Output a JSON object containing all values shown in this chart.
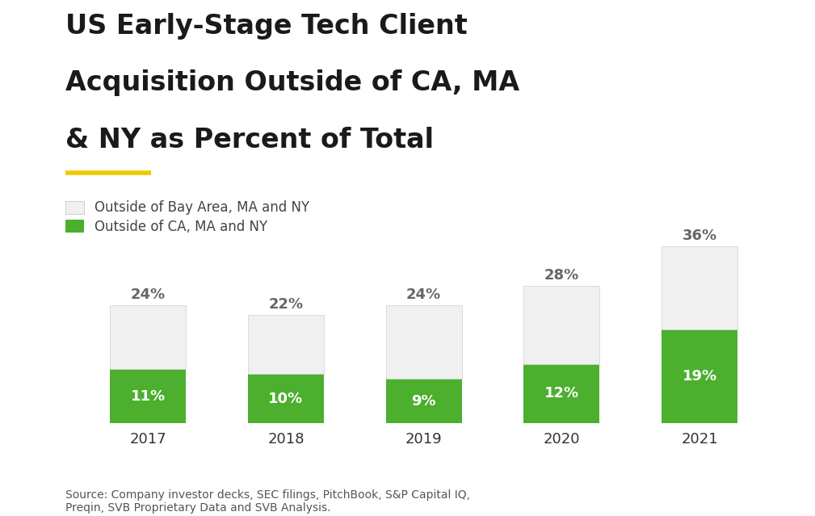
{
  "years": [
    "2017",
    "2018",
    "2019",
    "2020",
    "2021"
  ],
  "green_values": [
    11,
    10,
    9,
    12,
    19
  ],
  "white_values": [
    13,
    12,
    15,
    16,
    17
  ],
  "green_labels": [
    "11%",
    "10%",
    "9%",
    "12%",
    "19%"
  ],
  "total_labels": [
    "24%",
    "22%",
    "24%",
    "28%",
    "36%"
  ],
  "green_color": "#4caf2e",
  "white_color": "#f0f0f0",
  "bar_edge_color": "#d0d0d0",
  "title_line1": "US Early-Stage Tech Client",
  "title_line2": "Acquisition Outside of CA, MA",
  "title_line3": "& NY as Percent of Total",
  "legend_label1": "Outside of Bay Area, MA and NY",
  "legend_label2": "Outside of CA, MA and NY",
  "source_text": "Source: Company investor decks, SEC filings, PitchBook, S&P Capital IQ,\nPreqin, SVB Proprietary Data and SVB Analysis.",
  "yellow_line_color": "#f0c800",
  "background_color": "#ffffff",
  "title_fontsize": 24,
  "label_fontsize": 13,
  "tick_fontsize": 13,
  "source_fontsize": 10,
  "legend_fontsize": 12,
  "bar_width": 0.55,
  "ylim": [
    0,
    42
  ]
}
